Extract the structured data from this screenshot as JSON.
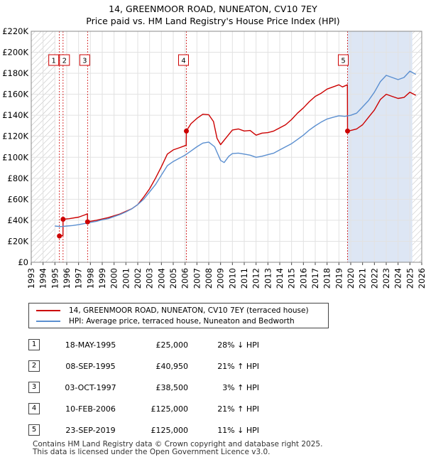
{
  "title_line1": "14, GREENMOOR ROAD, NUNEATON, CV10 7EY",
  "title_line2": "Price paid vs. HM Land Registry's House Price Index (HPI)",
  "colors": {
    "property": "#cc0000",
    "hpi": "#5b8fd0",
    "shade": "#dde6f4"
  },
  "chart_data": {
    "type": "line",
    "ylim": [
      0,
      220000
    ],
    "xlim": [
      1993,
      2026
    ],
    "y_ticks": [
      0,
      20000,
      40000,
      60000,
      80000,
      100000,
      120000,
      140000,
      160000,
      180000,
      200000,
      220000
    ],
    "y_tick_labels": [
      "£0",
      "£20K",
      "£40K",
      "£60K",
      "£80K",
      "£100K",
      "£120K",
      "£140K",
      "£160K",
      "£180K",
      "£200K",
      "£220K"
    ],
    "x_ticks": [
      1993,
      1994,
      1995,
      1996,
      1997,
      1998,
      1999,
      2000,
      2001,
      2002,
      2003,
      2004,
      2005,
      2006,
      2007,
      2008,
      2009,
      2010,
      2011,
      2012,
      2013,
      2014,
      2015,
      2016,
      2017,
      2018,
      2019,
      2020,
      2021,
      2022,
      2023,
      2024,
      2025,
      2026
    ],
    "hatch_before": 1995.0,
    "hatch_after": 2025.2,
    "series": [
      {
        "name": "14, GREENMOOR ROAD, NUNEATON, CV10 7EY (terraced house)",
        "points": [
          [
            1995.38,
            25000
          ],
          [
            1995.68,
            25500
          ],
          [
            1995.69,
            40950
          ],
          [
            1996.2,
            41500
          ],
          [
            1997.0,
            43000
          ],
          [
            1997.5,
            45000
          ],
          [
            1997.75,
            46200
          ],
          [
            1997.76,
            38500
          ],
          [
            1998.5,
            40000
          ],
          [
            1999.5,
            42500
          ],
          [
            2000.5,
            46000
          ],
          [
            2001.5,
            51000
          ],
          [
            2002.0,
            55000
          ],
          [
            2002.5,
            62000
          ],
          [
            2003.0,
            70000
          ],
          [
            2003.5,
            80000
          ],
          [
            2004.0,
            91000
          ],
          [
            2004.5,
            103000
          ],
          [
            2005.0,
            107000
          ],
          [
            2005.5,
            109000
          ],
          [
            2006.1,
            111500
          ],
          [
            2006.11,
            125000
          ],
          [
            2006.5,
            132000
          ],
          [
            2007.0,
            137000
          ],
          [
            2007.5,
            141000
          ],
          [
            2008.0,
            140500
          ],
          [
            2008.4,
            134000
          ],
          [
            2008.7,
            118000
          ],
          [
            2009.0,
            112000
          ],
          [
            2009.5,
            119000
          ],
          [
            2010.0,
            126000
          ],
          [
            2010.5,
            127000
          ],
          [
            2011.0,
            125000
          ],
          [
            2011.5,
            125500
          ],
          [
            2012.0,
            121000
          ],
          [
            2012.5,
            123000
          ],
          [
            2013.0,
            123500
          ],
          [
            2013.5,
            125000
          ],
          [
            2014.0,
            128000
          ],
          [
            2014.5,
            131000
          ],
          [
            2015.0,
            136000
          ],
          [
            2015.5,
            142000
          ],
          [
            2016.0,
            147000
          ],
          [
            2016.5,
            153000
          ],
          [
            2017.0,
            158000
          ],
          [
            2017.5,
            161000
          ],
          [
            2018.0,
            165000
          ],
          [
            2018.5,
            167000
          ],
          [
            2019.0,
            169000
          ],
          [
            2019.3,
            167000
          ],
          [
            2019.72,
            169000
          ],
          [
            2019.73,
            125000
          ],
          [
            2020.0,
            125500
          ],
          [
            2020.5,
            127000
          ],
          [
            2021.0,
            131000
          ],
          [
            2021.5,
            138000
          ],
          [
            2022.0,
            145000
          ],
          [
            2022.5,
            155000
          ],
          [
            2023.0,
            160000
          ],
          [
            2023.5,
            158000
          ],
          [
            2024.0,
            156000
          ],
          [
            2024.5,
            157000
          ],
          [
            2025.0,
            162000
          ],
          [
            2025.5,
            159000
          ]
        ]
      },
      {
        "name": "HPI: Average price, terraced house, Nuneaton and Bedworth",
        "points": [
          [
            1995.0,
            34500
          ],
          [
            1995.5,
            34000
          ],
          [
            1996.0,
            34500
          ],
          [
            1996.5,
            35000
          ],
          [
            1997.0,
            35800
          ],
          [
            1997.5,
            36800
          ],
          [
            1998.0,
            38000
          ],
          [
            1998.5,
            39000
          ],
          [
            1999.0,
            40500
          ],
          [
            1999.5,
            41500
          ],
          [
            2000.0,
            43500
          ],
          [
            2000.5,
            45500
          ],
          [
            2001.0,
            48000
          ],
          [
            2001.5,
            51000
          ],
          [
            2002.0,
            55000
          ],
          [
            2002.5,
            60000
          ],
          [
            2003.0,
            67000
          ],
          [
            2003.5,
            74000
          ],
          [
            2004.0,
            83000
          ],
          [
            2004.5,
            92000
          ],
          [
            2005.0,
            96000
          ],
          [
            2005.5,
            99000
          ],
          [
            2006.0,
            102000
          ],
          [
            2006.5,
            106000
          ],
          [
            2007.0,
            110000
          ],
          [
            2007.5,
            113500
          ],
          [
            2008.0,
            114500
          ],
          [
            2008.5,
            110000
          ],
          [
            2009.0,
            97000
          ],
          [
            2009.3,
            95000
          ],
          [
            2009.7,
            101000
          ],
          [
            2010.0,
            103500
          ],
          [
            2010.5,
            104000
          ],
          [
            2011.0,
            103000
          ],
          [
            2011.5,
            102000
          ],
          [
            2012.0,
            100000
          ],
          [
            2012.5,
            101000
          ],
          [
            2013.0,
            102500
          ],
          [
            2013.5,
            104000
          ],
          [
            2014.0,
            107000
          ],
          [
            2014.5,
            110000
          ],
          [
            2015.0,
            113000
          ],
          [
            2015.5,
            117000
          ],
          [
            2016.0,
            121000
          ],
          [
            2016.5,
            126000
          ],
          [
            2017.0,
            130000
          ],
          [
            2017.5,
            133500
          ],
          [
            2018.0,
            136500
          ],
          [
            2018.5,
            138000
          ],
          [
            2019.0,
            139500
          ],
          [
            2019.5,
            139000
          ],
          [
            2020.0,
            140000
          ],
          [
            2020.5,
            142000
          ],
          [
            2021.0,
            148000
          ],
          [
            2021.5,
            154000
          ],
          [
            2022.0,
            162000
          ],
          [
            2022.5,
            172000
          ],
          [
            2023.0,
            178000
          ],
          [
            2023.5,
            176000
          ],
          [
            2024.0,
            174000
          ],
          [
            2024.5,
            176000
          ],
          [
            2025.0,
            182000
          ],
          [
            2025.5,
            179000
          ]
        ]
      }
    ],
    "sales": [
      {
        "label": "1",
        "date": "18-MAY-1995",
        "x": 1995.38,
        "price": 25000,
        "pct": "28% ↓ HPI"
      },
      {
        "label": "2",
        "date": "08-SEP-1995",
        "x": 1995.69,
        "price": 40950,
        "pct": "21% ↑ HPI"
      },
      {
        "label": "3",
        "date": "03-OCT-1997",
        "x": 1997.76,
        "price": 38500,
        "pct": "3% ↑ HPI"
      },
      {
        "label": "4",
        "date": "10-FEB-2006",
        "x": 2006.11,
        "price": 125000,
        "pct": "21% ↑ HPI"
      },
      {
        "label": "5",
        "date": "23-SEP-2019",
        "x": 2019.73,
        "price": 125000,
        "pct": "11% ↓ HPI"
      }
    ]
  },
  "legend": {
    "property": "14, GREENMOOR ROAD, NUNEATON, CV10 7EY (terraced house)",
    "hpi": "HPI: Average price, terraced house, Nuneaton and Bedworth"
  },
  "table": [
    {
      "num": "1",
      "date": "18-MAY-1995",
      "price": "£25,000",
      "pct": "28% ↓ HPI"
    },
    {
      "num": "2",
      "date": "08-SEP-1995",
      "price": "£40,950",
      "pct": "21% ↑ HPI"
    },
    {
      "num": "3",
      "date": "03-OCT-1997",
      "price": "£38,500",
      "pct": "3% ↑ HPI"
    },
    {
      "num": "4",
      "date": "10-FEB-2006",
      "price": "£125,000",
      "pct": "21% ↑ HPI"
    },
    {
      "num": "5",
      "date": "23-SEP-2019",
      "price": "£125,000",
      "pct": "11% ↓ HPI"
    }
  ],
  "footer": {
    "line1": "Contains HM Land Registry data © Crown copyright and database right 2025.",
    "line2": "This data is licensed under the Open Government Licence v3.0."
  }
}
